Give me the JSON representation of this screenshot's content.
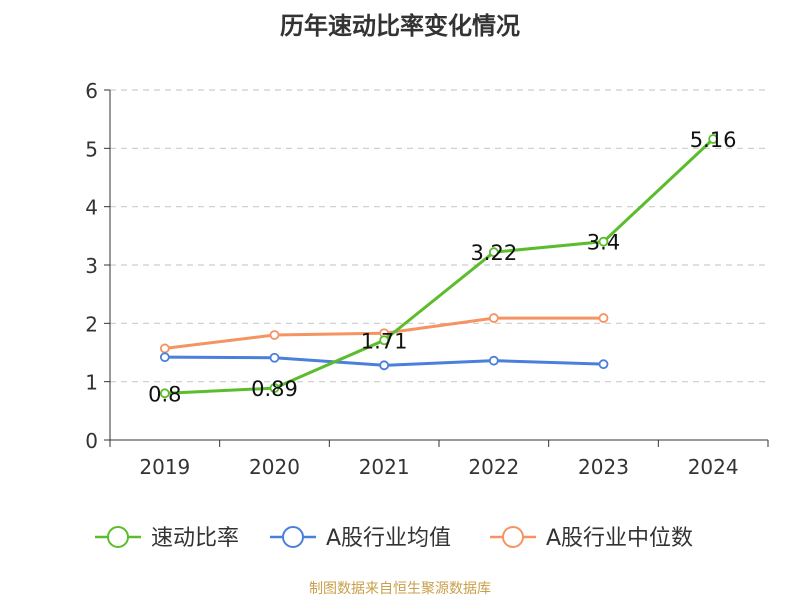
{
  "chart_data": {
    "type": "line",
    "title": "历年速动比率变化情况",
    "categories": [
      "2019",
      "2020",
      "2021",
      "2022",
      "2023",
      "2024"
    ],
    "ylim": [
      0,
      6
    ],
    "yticks": [
      0,
      1,
      2,
      3,
      4,
      5,
      6
    ],
    "grid": true,
    "legend_position": "bottom",
    "series": [
      {
        "name": "速动比率",
        "color": "#5bbd2b",
        "values": [
          0.8,
          0.89,
          1.71,
          3.22,
          3.4,
          5.16
        ],
        "labels": [
          "0.8",
          "0.89",
          "1.71",
          "3.22",
          "3.4",
          "5.16"
        ]
      },
      {
        "name": "A股行业均值",
        "color": "#4a7fdc",
        "values": [
          1.42,
          1.41,
          1.28,
          1.36,
          1.3,
          null
        ]
      },
      {
        "name": "A股行业中位数",
        "color": "#f59363",
        "values": [
          1.57,
          1.8,
          1.83,
          2.09,
          2.09,
          null
        ]
      }
    ]
  },
  "footer": {
    "source": "制图数据来自恒生聚源数据库"
  }
}
